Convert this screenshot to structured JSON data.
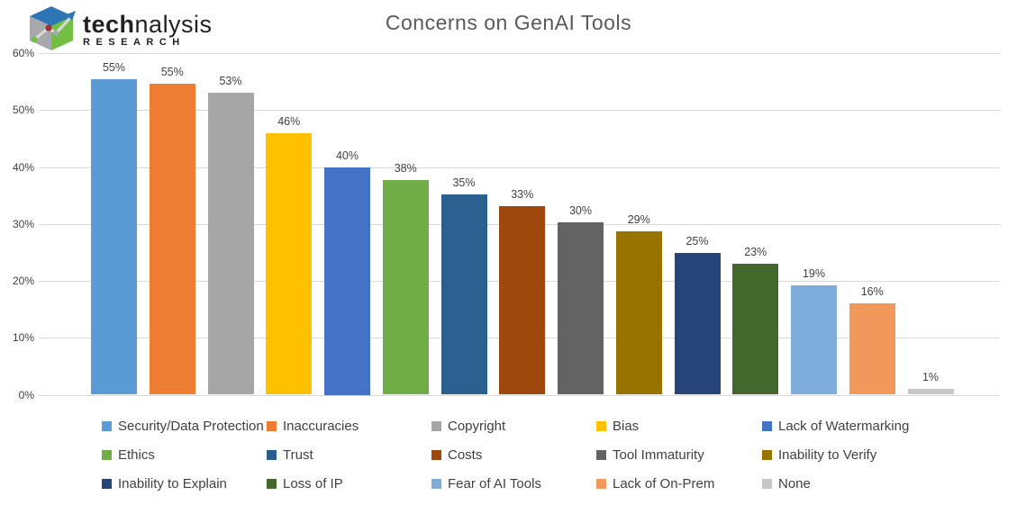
{
  "logo": {
    "brand_bold": "tech",
    "brand_rest": "nalysis",
    "subtitle": "RESEARCH",
    "cube_colors": {
      "top": "#2e75b6",
      "left": "#a6a8ab",
      "right": "#72bf44",
      "arrow": "#d6d7d8",
      "arrowhead": "#2e75b6",
      "dot_green": "#72bf44",
      "dot_red": "#9e3039",
      "dot_gray": "#a6a8ab"
    }
  },
  "chart_data": {
    "type": "bar",
    "title": "Concerns on GenAI Tools",
    "xlabel": "",
    "ylabel": "",
    "ylim": [
      0,
      60
    ],
    "ytick_labels": [
      "0%",
      "10%",
      "20%",
      "30%",
      "40%",
      "50%",
      "60%"
    ],
    "grid": true,
    "legend_position": "bottom",
    "value_suffix": "%",
    "series": [
      {
        "label": "Security/Data Protection",
        "value": 55,
        "display": "55%",
        "height_pct": 55.4,
        "color": "#5B9BD5"
      },
      {
        "label": "Inaccuracies",
        "value": 55,
        "display": "55%",
        "height_pct": 54.7,
        "color": "#ED7D31"
      },
      {
        "label": "Copyright",
        "value": 53,
        "display": "53%",
        "height_pct": 53.0,
        "color": "#A5A5A5"
      },
      {
        "label": "Bias",
        "value": 46,
        "display": "46%",
        "height_pct": 45.9,
        "color": "#FFC000"
      },
      {
        "label": "Lack of Watermarking",
        "value": 40,
        "display": "40%",
        "height_pct": 40.0,
        "color": "#4472C4"
      },
      {
        "label": "Ethics",
        "value": 38,
        "display": "38%",
        "height_pct": 37.7,
        "color": "#70AD47"
      },
      {
        "label": "Trust",
        "value": 35,
        "display": "35%",
        "height_pct": 35.2,
        "color": "#2A5F8F"
      },
      {
        "label": "Costs",
        "value": 33,
        "display": "33%",
        "height_pct": 33.2,
        "color": "#9E480E"
      },
      {
        "label": "Tool Immaturity",
        "value": 30,
        "display": "30%",
        "height_pct": 30.2,
        "color": "#636363"
      },
      {
        "label": "Inability to Verify",
        "value": 29,
        "display": "29%",
        "height_pct": 28.7,
        "color": "#997300"
      },
      {
        "label": "Inability to Explain",
        "value": 25,
        "display": "25%",
        "height_pct": 24.9,
        "color": "#264478"
      },
      {
        "label": "Loss of IP",
        "value": 23,
        "display": "23%",
        "height_pct": 23.0,
        "color": "#43682B"
      },
      {
        "label": "Fear of AI Tools",
        "value": 19,
        "display": "19%",
        "height_pct": 19.2,
        "color": "#7EACDC"
      },
      {
        "label": "Lack of On-Prem",
        "value": 16,
        "display": "16%",
        "height_pct": 16.0,
        "color": "#F0995A"
      },
      {
        "label": "None",
        "value": 1,
        "display": "1%",
        "height_pct": 1.0,
        "color": "#C6C6C6"
      }
    ]
  }
}
